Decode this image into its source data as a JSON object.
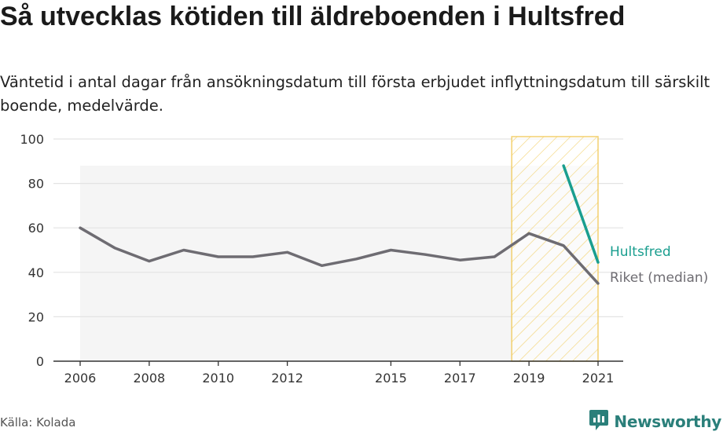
{
  "title": "Så utvecklas kötiden till äldreboenden i Hultsfred",
  "subtitle": "Väntetid i antal dagar från ansökningsdatum till första erbjudet inflyttningsdatum till särskilt boende, medelvärde.",
  "source": "Källa: Kolada",
  "brand": {
    "name": "Newsworthy",
    "icon": "newsworthy-logo-icon"
  },
  "colors": {
    "hultsfred": "#1a9e8f",
    "riket": "#6e6c72",
    "highlight_stroke": "#f0c64c",
    "band_fill": "#f5f5f5",
    "grid": "#e3e3e3",
    "brand": "#2a7f7a"
  },
  "chart_data": {
    "type": "line",
    "x_ticks": [
      2006,
      2008,
      2010,
      2012,
      2015,
      2017,
      2019,
      2021
    ],
    "y_ticks": [
      0,
      20,
      40,
      60,
      80,
      100
    ],
    "ylim": [
      0,
      100
    ],
    "xlim": [
      2006,
      2021
    ],
    "grid": true,
    "series": [
      {
        "name": "Riket (median)",
        "x": [
          2006,
          2007,
          2008,
          2009,
          2010,
          2011,
          2012,
          2013,
          2014,
          2015,
          2016,
          2017,
          2018,
          2019,
          2020,
          2021
        ],
        "y": [
          60,
          51,
          45,
          50,
          47,
          47,
          49,
          43,
          46,
          50,
          48,
          45.5,
          47,
          57.5,
          52,
          35
        ]
      },
      {
        "name": "Hultsfred",
        "x": [
          2020,
          2021
        ],
        "y": [
          88,
          44.5
        ]
      }
    ],
    "band": {
      "x_from": 2006,
      "x_to": 2021,
      "y_low": 0,
      "y_high": 88
    },
    "highlight_period": {
      "x_from": 2018.5,
      "x_to": 2021,
      "style": "hatched"
    }
  }
}
